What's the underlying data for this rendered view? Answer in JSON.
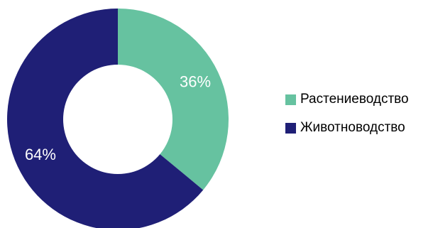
{
  "chart_data": {
    "type": "pie",
    "donut": true,
    "title": "",
    "slices": [
      {
        "label": "Растениеводство",
        "value": 36,
        "display": "36%",
        "color": "#66c2a0"
      },
      {
        "label": "Животноводство",
        "value": 64,
        "display": "64%",
        "color": "#1f1f76"
      }
    ],
    "start_angle": "12 o'clock",
    "direction": "clockwise",
    "legend_position": "right"
  }
}
